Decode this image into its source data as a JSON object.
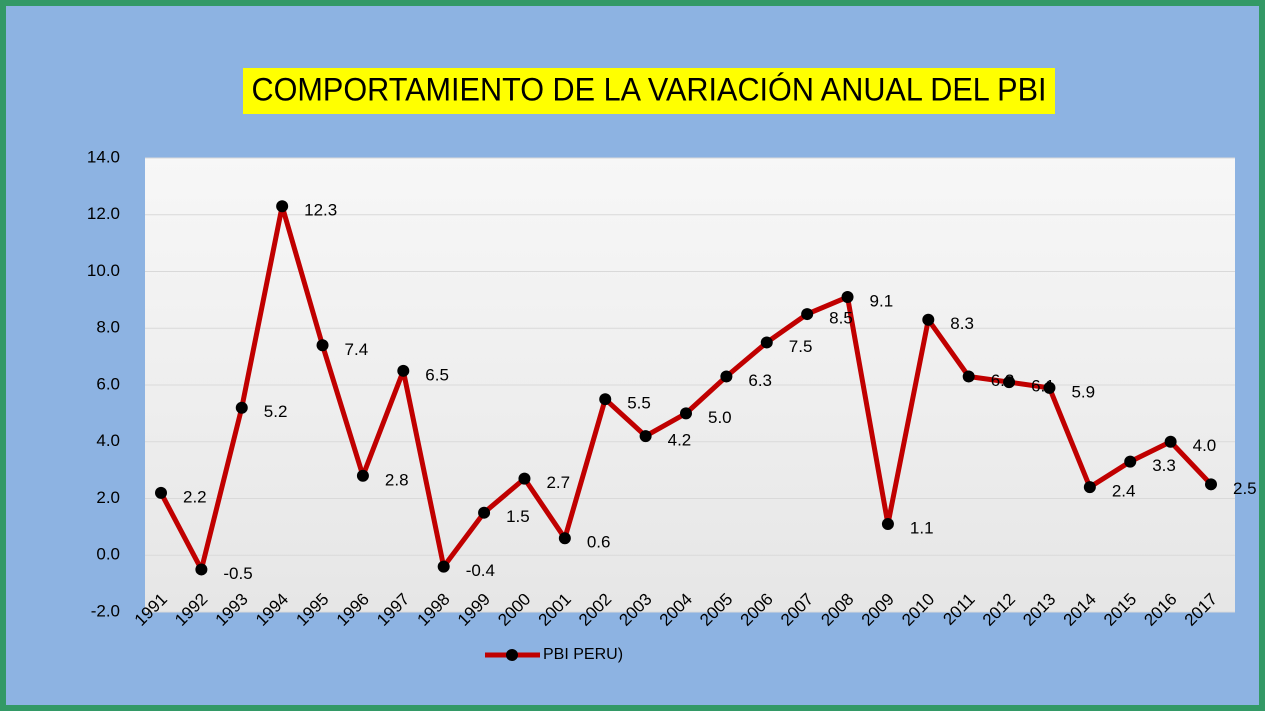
{
  "chart_data": {
    "type": "line",
    "title": "COMPORTAMIENTO DE LA VARIACIÓN ANUAL DEL PBI",
    "categories": [
      "1991",
      "1992",
      "1993",
      "1994",
      "1995",
      "1996",
      "1997",
      "1998",
      "1999",
      "2000",
      "2001",
      "2002",
      "2003",
      "2004",
      "2005",
      "2006",
      "2007",
      "2008",
      "2009",
      "2010",
      "2011",
      "2012",
      "2013",
      "2014",
      "2015",
      "2016",
      "2017"
    ],
    "series": [
      {
        "name": "PBI PERU)",
        "color": "#c00000",
        "values": [
          2.2,
          -0.5,
          5.2,
          12.3,
          7.4,
          2.8,
          6.5,
          -0.4,
          1.5,
          2.7,
          0.6,
          5.5,
          4.2,
          5.0,
          6.3,
          7.5,
          8.5,
          9.1,
          1.1,
          8.3,
          6.3,
          6.1,
          5.9,
          2.4,
          3.3,
          4.0,
          2.5
        ],
        "value_labels": [
          "2.2",
          "-0.5",
          "5.2",
          "12.3",
          "7.4",
          "2.8",
          "6.5",
          "-0.4",
          "1.5",
          "2.7",
          "0.6",
          "5.5",
          "4.2",
          "5.0",
          "6.3",
          "7.5",
          "8.5",
          "9.1",
          "1.1",
          "8.3",
          "6.3",
          "6.1",
          "5.9",
          "2.4",
          "3.3",
          "4.0",
          "2.5"
        ]
      }
    ],
    "ylim": [
      -2,
      14
    ],
    "yticks": [
      {
        "value": -2,
        "label": "-2.0"
      },
      {
        "value": 0,
        "label": "0.0"
      },
      {
        "value": 2,
        "label": "2.0"
      },
      {
        "value": 4,
        "label": "4.0"
      },
      {
        "value": 6,
        "label": "6.0"
      },
      {
        "value": 8,
        "label": "8.0"
      },
      {
        "value": 10,
        "label": "10.0"
      },
      {
        "value": 12,
        "label": "12.0"
      },
      {
        "value": 14,
        "label": "14.0"
      }
    ],
    "grid": true,
    "legend": "bottom"
  }
}
